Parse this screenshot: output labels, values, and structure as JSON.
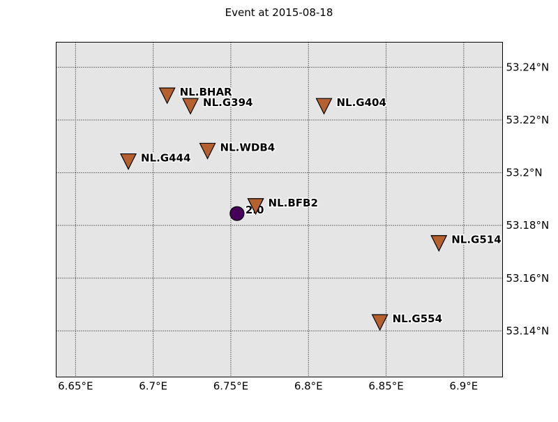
{
  "chart_data": {
    "type": "scatter",
    "title": "Event at 2015-08-18",
    "xlabel": "",
    "ylabel": "",
    "xlim": [
      6.6375,
      6.925
    ],
    "ylim": [
      53.1225,
      53.2495
    ],
    "grid": true,
    "grid_style": "dotted",
    "background_color": "#e5e5e5",
    "x_ticks": [
      6.65,
      6.7,
      6.75,
      6.8,
      6.85,
      6.9
    ],
    "x_tick_labels": [
      "6.65°E",
      "6.7°E",
      "6.75°E",
      "6.8°E",
      "6.85°E",
      "6.9°E"
    ],
    "y_ticks": [
      53.14,
      53.16,
      53.18,
      53.2,
      53.22,
      53.24
    ],
    "y_tick_labels": [
      "53.14°N",
      "53.16°N",
      "53.18°N",
      "53.2°N",
      "53.22°N",
      "53.24°N"
    ],
    "y_axis_side": "right",
    "stations": {
      "marker": "triangle-down",
      "color": "#b5612f",
      "points": [
        {
          "label": "NL.BHAR",
          "x": 6.709,
          "y": 53.2295
        },
        {
          "label": "NL.G394",
          "x": 6.724,
          "y": 53.2255
        },
        {
          "label": "NL.G404",
          "x": 6.81,
          "y": 53.2255
        },
        {
          "label": "NL.WDB4",
          "x": 6.735,
          "y": 53.2085
        },
        {
          "label": "NL.G444",
          "x": 6.684,
          "y": 53.2045
        },
        {
          "label": "NL.BFB2",
          "x": 6.766,
          "y": 53.1875
        },
        {
          "label": "NL.G514",
          "x": 6.884,
          "y": 53.1735
        },
        {
          "label": "NL.G554",
          "x": 6.846,
          "y": 53.1435
        }
      ]
    },
    "event": {
      "marker": "circle",
      "color": "#45005a",
      "label": "2.0",
      "x": 6.754,
      "y": 53.1845
    }
  }
}
